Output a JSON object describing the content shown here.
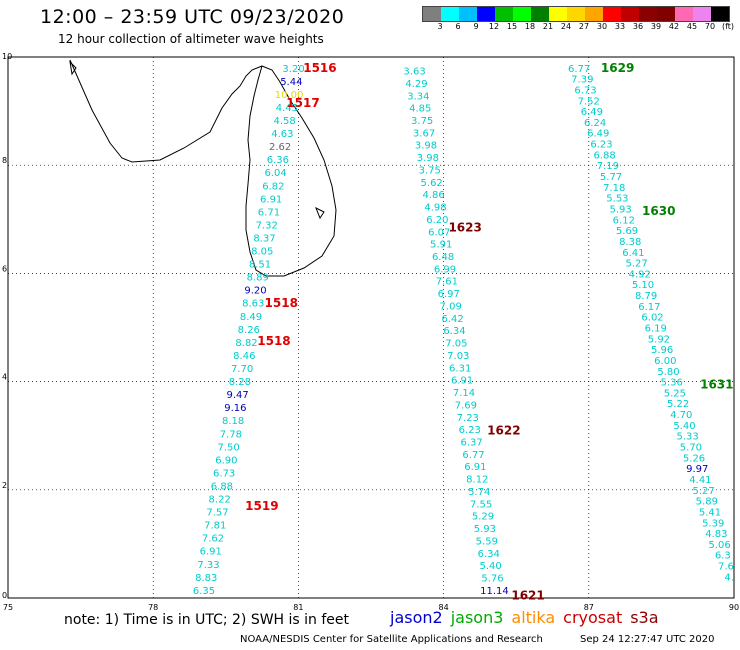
{
  "header": {
    "title": "12:00 – 23:59 UTC 09/23/2020",
    "subtitle": "12 hour collection of altimeter wave heights"
  },
  "scale": {
    "colors": [
      "#7f7f7f",
      "#00ffff",
      "#00bfff",
      "#0000ff",
      "#00bf00",
      "#00ff00",
      "#008000",
      "#ffff00",
      "#ffd700",
      "#ffa500",
      "#ff0000",
      "#c00000",
      "#8b0000",
      "#800000",
      "#ff69b4",
      "#ee82ee",
      "#000000"
    ],
    "labels": [
      "3",
      "6",
      "9",
      "12",
      "15",
      "18",
      "21",
      "24",
      "27",
      "30",
      "33",
      "36",
      "39",
      "42",
      "45",
      "70",
      "(ft)"
    ]
  },
  "axes": {
    "x_ticks": [
      75,
      78,
      81,
      84,
      87,
      90
    ],
    "y_ticks": [
      0,
      2,
      4,
      6,
      8,
      10
    ],
    "xlim": [
      75,
      90
    ],
    "ylim": [
      0,
      10
    ]
  },
  "colors": {
    "cyan": "#00cccc",
    "blue": "#0000bb",
    "gray": "#666666",
    "yellow": "#e8d800",
    "red_time": "#e00000",
    "green_time": "#008000",
    "darkred_time": "#800000"
  },
  "tracks": [
    {
      "id": "left",
      "start": [
        80.9,
        9.8
      ],
      "end": [
        79.05,
        0.15
      ],
      "values": [
        "3.20",
        "5.44",
        "10.00",
        "4.43",
        "4.58",
        "4.63",
        "2.62",
        "6.36",
        "6.04",
        "6.82",
        "6.91",
        "6.71",
        "7.32",
        "8.37",
        "8.05",
        "8.51",
        "8.89",
        "9.20",
        "8.63",
        "8.49",
        "8.26",
        "8.82",
        "8.46",
        "7.70",
        "8.28",
        "9.47",
        "9.16",
        "8.18",
        "7.78",
        "7.50",
        "6.90",
        "6.73",
        "6.88",
        "8.22",
        "7.57",
        "7.81",
        "7.62",
        "6.91",
        "7.33",
        "8.83",
        "6.35"
      ],
      "special": {
        "1": "blue",
        "2": "yellow",
        "6": "gray",
        "17": "blue",
        "25": "blue",
        "26": "blue"
      }
    },
    {
      "id": "middle",
      "start": [
        83.4,
        9.75
      ],
      "end": [
        85.05,
        0.15
      ],
      "values": [
        "3.63",
        "4.29",
        "3.34",
        "4.85",
        "3.75",
        "3.67",
        "3.98",
        "3.98",
        "3.75",
        "5.62",
        "4.86",
        "4.98",
        "6.20",
        "6.07",
        "5.91",
        "6.48",
        "6.99",
        "7.61",
        "6.97",
        "7.09",
        "6.42",
        "6.34",
        "7.05",
        "7.03",
        "6.31",
        "6.91",
        "7.14",
        "7.69",
        "7.23",
        "6.23",
        "6.37",
        "6.77",
        "6.91",
        "8.12",
        "5.74",
        "7.55",
        "5.29",
        "5.93",
        "5.59",
        "6.34",
        "5.40",
        "5.76",
        "11.14"
      ],
      "special": {
        "42": "blue"
      }
    },
    {
      "id": "right",
      "start": [
        86.8,
        9.8
      ],
      "end": [
        89.9,
        0.4
      ],
      "values": [
        "6.77",
        "7.39",
        "6.73",
        "7.52",
        "6.49",
        "6.24",
        "6.49",
        "6.23",
        "6.88",
        "7.19",
        "5.77",
        "7.18",
        "5.53",
        "5.93",
        "6.12",
        "5.69",
        "8.38",
        "6.41",
        "5.27",
        "4.92",
        "5.10",
        "8.79",
        "6.17",
        "6.02",
        "6.19",
        "5.92",
        "5.96",
        "6.00",
        "5.80",
        "5.36",
        "5.25",
        "5.22",
        "4.70",
        "5.40",
        "5.33",
        "5.70",
        "5.26",
        "9.97",
        "4.41",
        "5.27",
        "5.89",
        "5.41",
        "5.39",
        "4.83",
        "5.06",
        "6.3",
        "7.6",
        "4."
      ],
      "special": {
        "37": "blue"
      }
    }
  ],
  "time_labels": [
    {
      "text": "1516",
      "lon": 81.1,
      "lat": 9.8,
      "color": "red"
    },
    {
      "text": "1517",
      "lon": 80.75,
      "lat": 9.15,
      "color": "red"
    },
    {
      "text": "1518",
      "lon": 80.3,
      "lat": 5.45,
      "color": "red"
    },
    {
      "text": "1518",
      "lon": 80.15,
      "lat": 4.75,
      "color": "red"
    },
    {
      "text": "1519",
      "lon": 79.9,
      "lat": 1.7,
      "color": "red"
    },
    {
      "text": "1623",
      "lon": 84.1,
      "lat": 6.85,
      "color": "darkred"
    },
    {
      "text": "1622",
      "lon": 84.9,
      "lat": 3.1,
      "color": "darkred"
    },
    {
      "text": "1621",
      "lon": 85.4,
      "lat": 0.05,
      "color": "darkred"
    },
    {
      "text": "1629",
      "lon": 87.25,
      "lat": 9.8,
      "color": "green"
    },
    {
      "text": "1630",
      "lon": 88.1,
      "lat": 7.15,
      "color": "green"
    },
    {
      "text": "1631",
      "lon": 89.3,
      "lat": 3.95,
      "color": "green"
    }
  ],
  "note": "note: 1) Time is in UTC; 2) SWH is in feet",
  "satellites": [
    {
      "name": "jason2",
      "color": "#0000cc"
    },
    {
      "name": "jason3",
      "color": "#00aa00"
    },
    {
      "name": "altika",
      "color": "#ff8c00"
    },
    {
      "name": "cryosat",
      "color": "#cc0000"
    },
    {
      "name": "s3a",
      "color": "#8b0000"
    }
  ],
  "footer": "NOAA/NESDIS Center for Satellite Applications and Research",
  "timestamp": "Sep 24 12:27:47 UTC 2020"
}
